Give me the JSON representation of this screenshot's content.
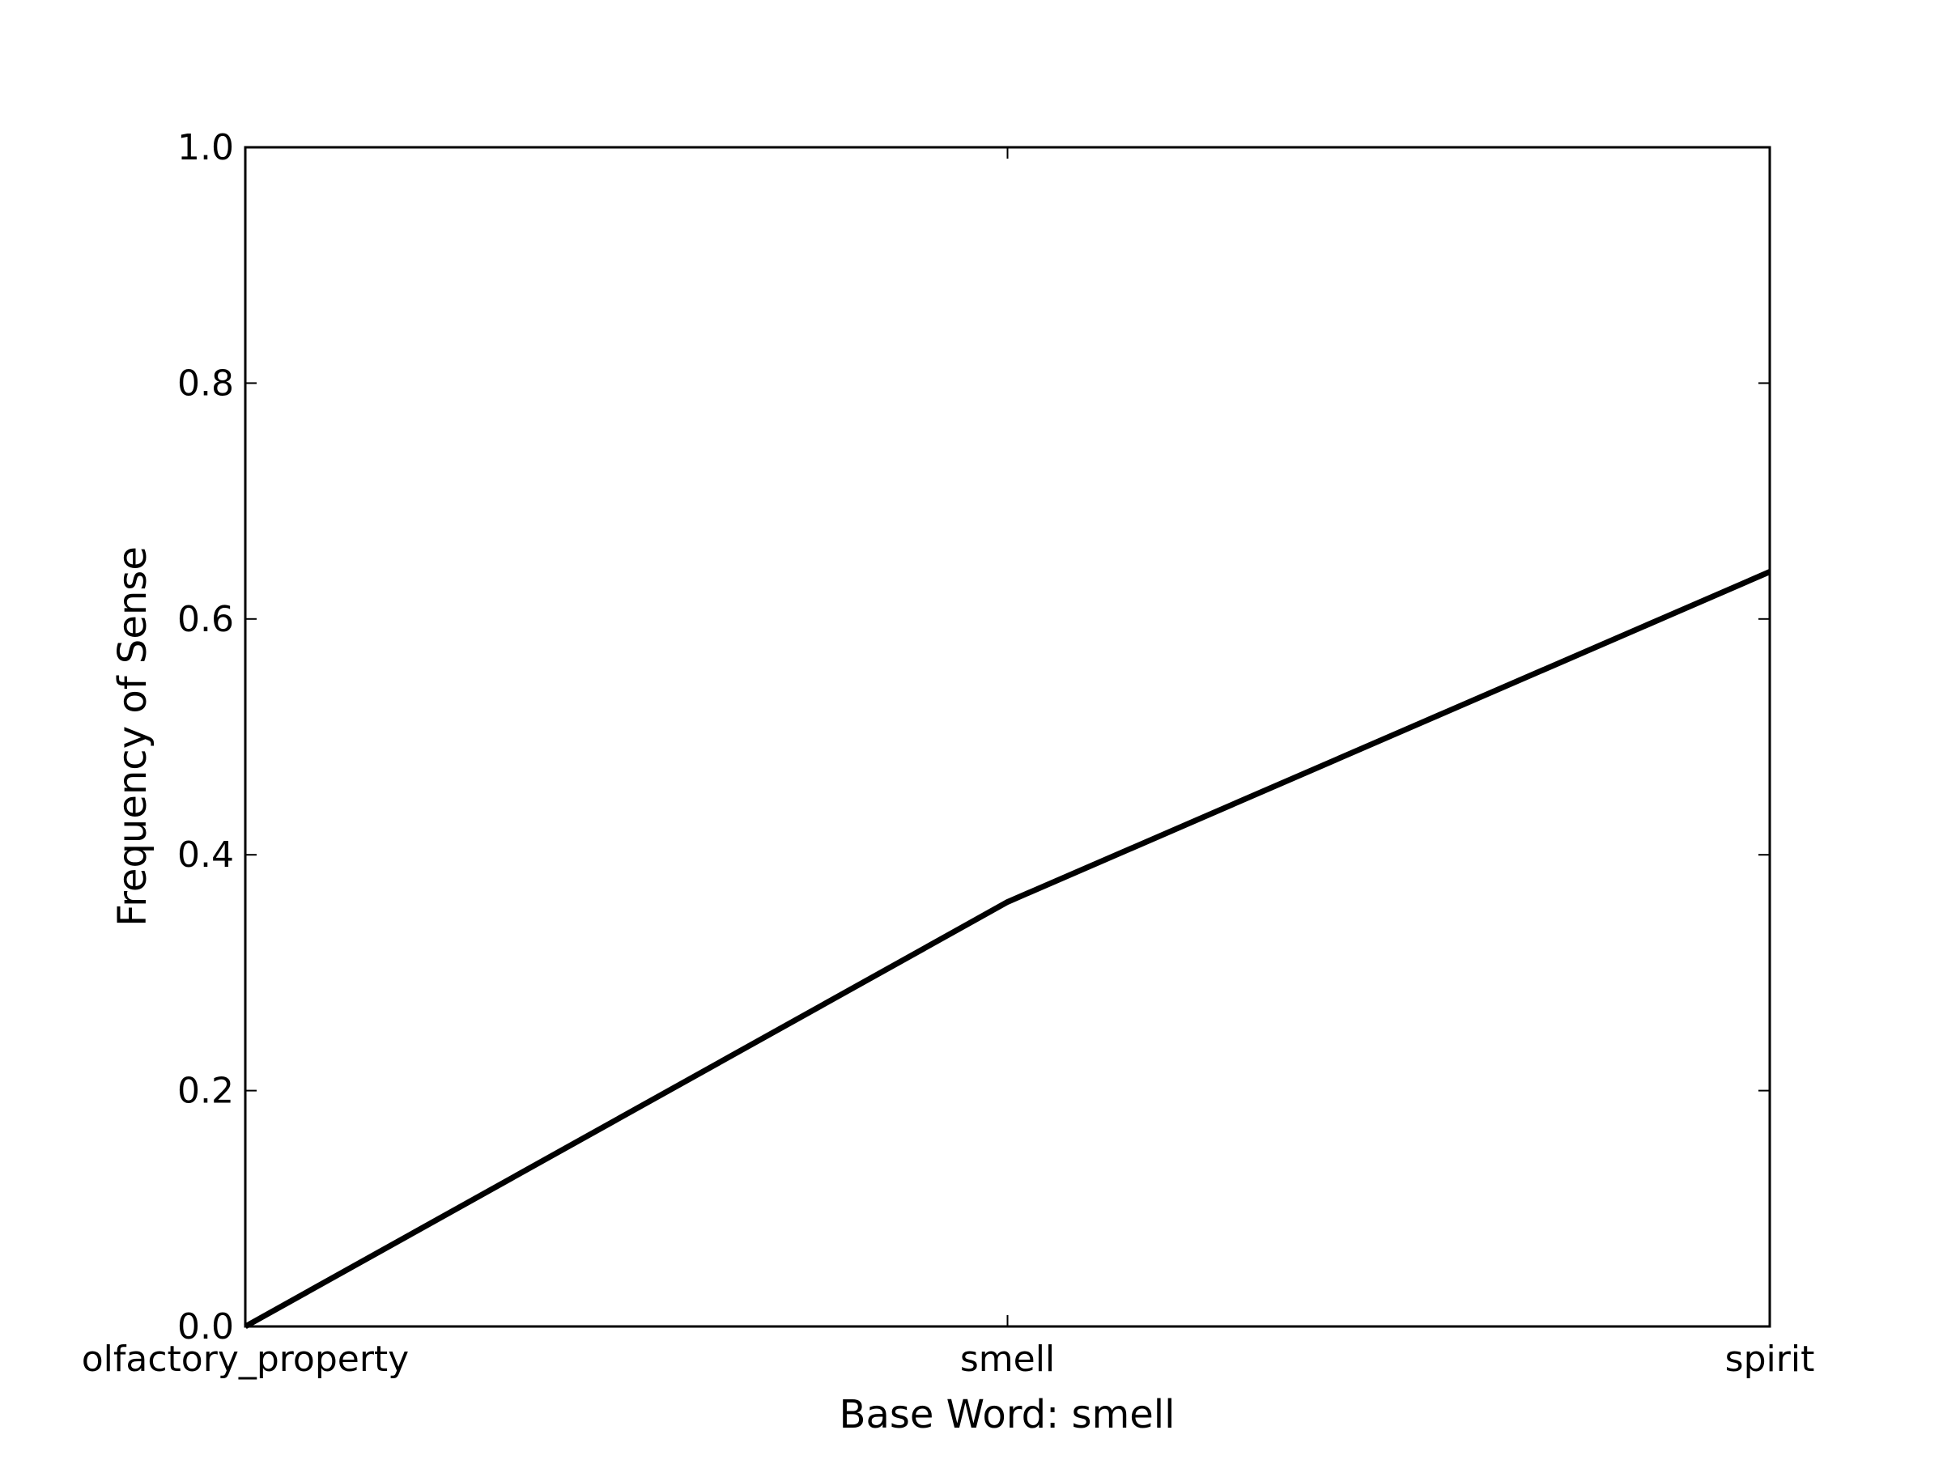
{
  "chart_data": {
    "type": "line",
    "title": "",
    "xlabel": "Base Word: smell",
    "ylabel": "Frequency of Sense",
    "categories": [
      "olfactory_property",
      "smell",
      "spirit"
    ],
    "series": [
      {
        "values": [
          0.0,
          0.36,
          0.64
        ],
        "color": "#000000"
      }
    ],
    "ylim": [
      0.0,
      1.0
    ],
    "yticks": [
      "0.0",
      "0.2",
      "0.4",
      "0.6",
      "0.8",
      "1.0"
    ],
    "grid": false,
    "legend": "none"
  }
}
